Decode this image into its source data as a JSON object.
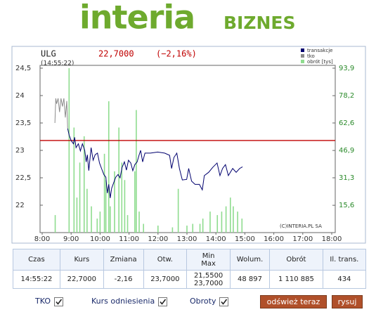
{
  "header": {
    "logo": "interia",
    "section": "BIZNES"
  },
  "chart_data": {
    "type": "line",
    "title": "ULG",
    "price": "22,7000",
    "change": "(−2,16%)",
    "time": "(14:55:22)",
    "copyright": "(C)INTERIA.PL SA",
    "xlim": [
      8,
      18
    ],
    "xticks": [
      {
        "value": 8,
        "label": "8:00"
      },
      {
        "value": 9,
        "label": "9:00"
      },
      {
        "value": 10,
        "label": "10:00"
      },
      {
        "value": 11,
        "label": "11:00"
      },
      {
        "value": 12,
        "label": "12:00"
      },
      {
        "value": 13,
        "label": "13:00"
      },
      {
        "value": 14,
        "label": "14:00"
      },
      {
        "value": 15,
        "label": "15:00"
      },
      {
        "value": 16,
        "label": "16:00"
      },
      {
        "value": 17,
        "label": "17:00"
      },
      {
        "value": 18,
        "label": "18:00"
      }
    ],
    "ylim": [
      21.5,
      24.5
    ],
    "yticks": [
      {
        "value": 24.5,
        "label": "24,5"
      },
      24,
      {
        "value": 23.5,
        "label": "23,5"
      },
      23,
      {
        "value": 22.5,
        "label": "22,5"
      },
      22
    ],
    "y2lim": [
      0,
      93.9
    ],
    "y2ticks": [
      {
        "value": 93.9,
        "label": "93,9"
      },
      {
        "value": 78.2,
        "label": "78,2"
      },
      {
        "value": 62.6,
        "label": "62,6"
      },
      {
        "value": 46.9,
        "label": "46,9"
      },
      {
        "value": 31.3,
        "label": "31,3"
      },
      {
        "value": 15.6,
        "label": "15,6"
      }
    ],
    "reference_line": {
      "value": 23.18,
      "color": "#c00000"
    },
    "legend": "top-right",
    "series": [
      {
        "name": "transakcje",
        "color": "#00006e",
        "type": "line",
        "x": [
          8.88,
          8.93,
          9.0,
          9.08,
          9.12,
          9.17,
          9.25,
          9.32,
          9.39,
          9.47,
          9.52,
          9.56,
          9.61,
          9.69,
          9.76,
          9.83,
          9.91,
          9.98,
          10.05,
          10.13,
          10.2,
          10.25,
          10.3,
          10.35,
          10.4,
          10.47,
          10.54,
          10.62,
          10.69,
          10.76,
          10.84,
          10.91,
          10.98,
          11.06,
          11.13,
          11.2,
          11.28,
          11.35,
          11.4,
          11.47,
          11.55,
          11.74,
          11.99,
          12.23,
          12.4,
          12.47,
          12.55,
          12.65,
          12.74,
          12.84,
          12.99,
          13.06,
          13.16,
          13.28,
          13.43,
          13.53,
          13.6,
          13.75,
          13.89,
          14.04,
          14.14,
          14.23,
          14.33,
          14.43,
          14.58,
          14.7,
          14.82,
          14.92
        ],
        "values": [
          23.4,
          23.28,
          23.18,
          23.12,
          23.24,
          23.05,
          23.12,
          22.99,
          23.12,
          23.0,
          22.79,
          22.92,
          22.63,
          23.05,
          22.82,
          22.92,
          22.95,
          22.77,
          22.67,
          22.56,
          22.51,
          22.22,
          22.38,
          22.13,
          22.31,
          22.41,
          22.51,
          22.56,
          22.5,
          22.69,
          22.79,
          22.64,
          22.82,
          22.77,
          22.63,
          22.74,
          22.79,
          22.92,
          23.0,
          22.79,
          22.95,
          22.95,
          22.97,
          22.95,
          22.91,
          22.67,
          22.87,
          22.95,
          22.67,
          22.46,
          22.47,
          22.67,
          22.44,
          22.38,
          22.38,
          22.28,
          22.54,
          22.6,
          22.69,
          22.77,
          22.54,
          22.67,
          22.74,
          22.54,
          22.67,
          22.6,
          22.67,
          22.7
        ]
      },
      {
        "name": "tko",
        "color": "#8c8c8c",
        "type": "line",
        "x": [
          8.44,
          8.47,
          8.5,
          8.55,
          8.6,
          8.65,
          8.7,
          8.75,
          8.8,
          8.85,
          8.88
        ],
        "values": [
          23.5,
          23.95,
          23.85,
          23.95,
          23.7,
          23.95,
          23.8,
          23.95,
          23.6,
          23.9,
          23.4
        ]
      },
      {
        "name": "obrót [tys]",
        "color": "#8fdc8f",
        "type": "bar",
        "axis": "y2",
        "x": [
          8.45,
          8.93,
          9.1,
          9.2,
          9.3,
          9.45,
          9.55,
          9.7,
          9.9,
          10.0,
          10.15,
          10.2,
          10.3,
          10.35,
          10.5,
          10.65,
          10.75,
          10.85,
          10.95,
          11.2,
          11.25,
          11.35,
          11.5,
          12.0,
          12.5,
          12.7,
          13.0,
          13.2,
          13.45,
          13.55,
          13.8,
          14.05,
          14.2,
          14.35,
          14.5,
          14.6,
          14.75,
          14.9
        ],
        "values": [
          10,
          93.9,
          60,
          20,
          40,
          55,
          25,
          15,
          8,
          12,
          45,
          30,
          75,
          15,
          35,
          60,
          40,
          30,
          10,
          35,
          70,
          12,
          5,
          4,
          3,
          25,
          4,
          5,
          5,
          8,
          12,
          10,
          12,
          15,
          20,
          15,
          12,
          8
        ]
      }
    ]
  },
  "table": {
    "headers": [
      "Czas",
      "Kurs",
      "Zmiana",
      "Otw.",
      [
        "Min",
        "Max"
      ],
      "Wolum.",
      "Obrót",
      "Il. trans."
    ],
    "rows": [
      [
        "14:55:22",
        "22,7000",
        "-2,16",
        "23,7000",
        [
          "21,5500",
          "23,7000"
        ],
        "48 897",
        "1 110 885",
        "434"
      ]
    ]
  },
  "controls": {
    "checkboxes": [
      {
        "label": "TKO",
        "checked": true
      },
      {
        "label": "Kurs odniesienia",
        "checked": true
      },
      {
        "label": "Obroty",
        "checked": true
      }
    ],
    "buttons": [
      "odśwież teraz",
      "rysuj"
    ]
  }
}
